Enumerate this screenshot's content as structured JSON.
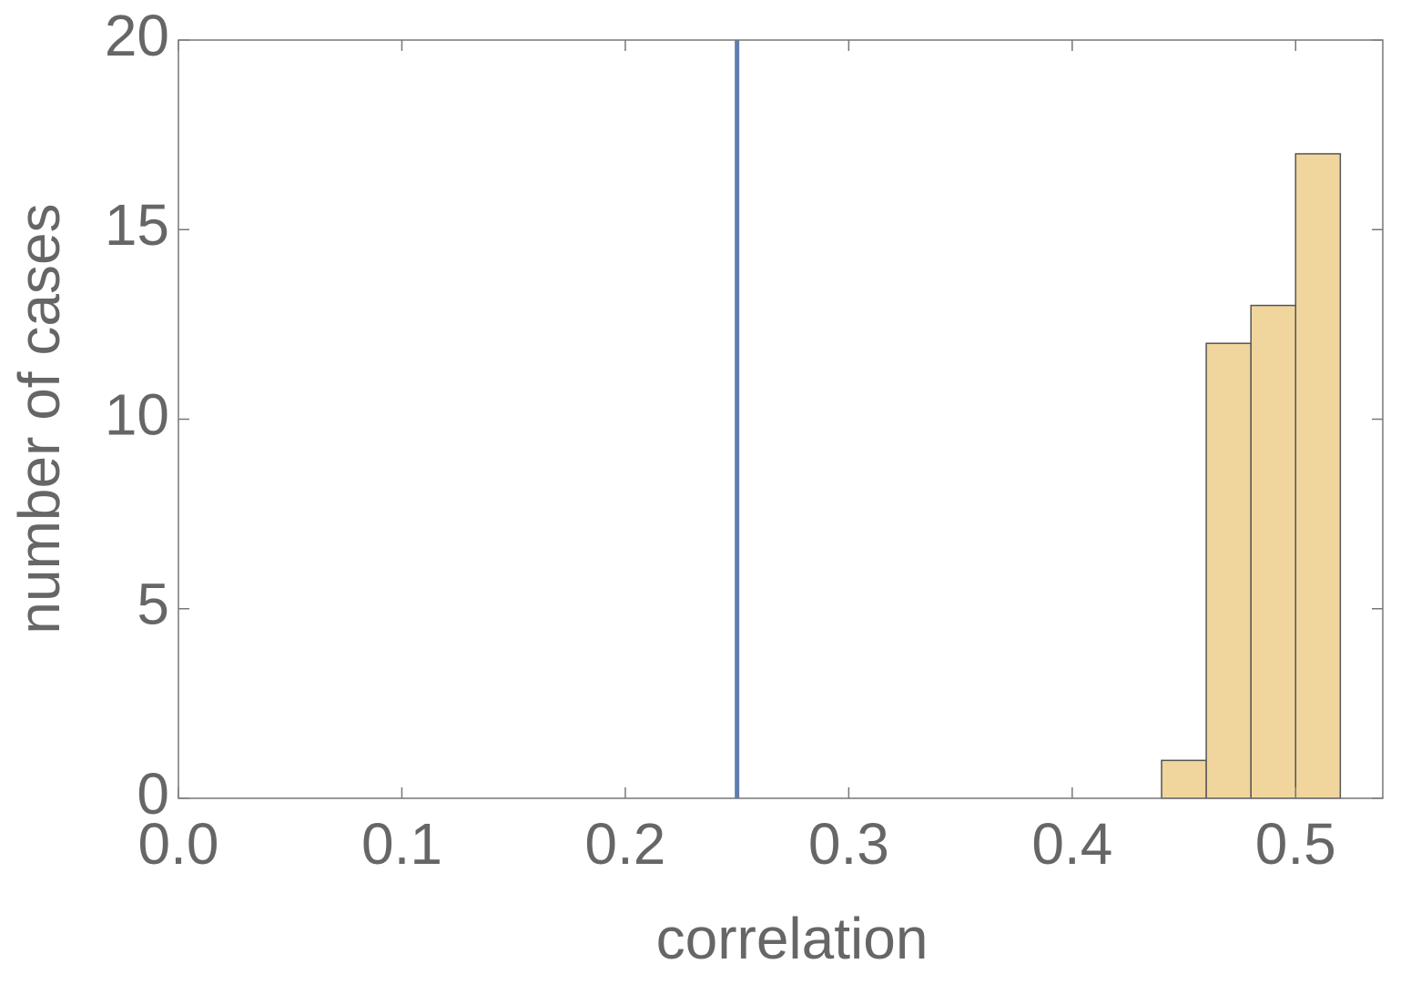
{
  "chart_data": {
    "type": "histogram",
    "xlabel": "correlation",
    "ylabel": "number of cases",
    "bins": [
      0.44,
      0.46,
      0.48,
      0.5,
      0.52
    ],
    "values": [
      1,
      12,
      13,
      17
    ],
    "color": "#f0d59d",
    "edgecolor": "#555555",
    "vline": {
      "x": 0.25,
      "color": "#5f7db3"
    },
    "xlim": [
      0,
      0.539
    ],
    "ylim": [
      0,
      20
    ],
    "xticks": [
      {
        "value": 0,
        "label": "0.0"
      },
      0.1,
      0.2,
      0.3,
      0.4,
      0.5
    ],
    "yticks": [
      0,
      5,
      10,
      15,
      20
    ],
    "grid": false
  }
}
